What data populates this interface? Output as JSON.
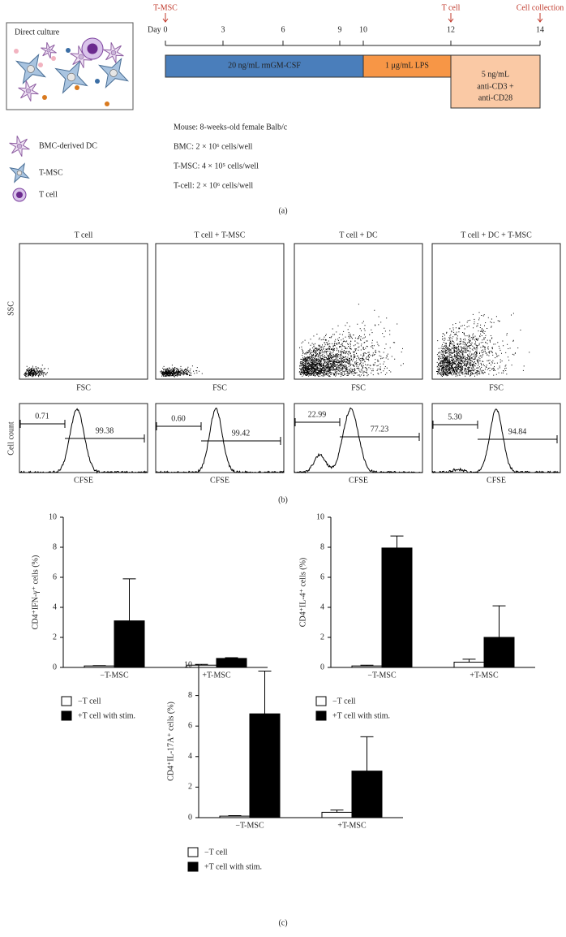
{
  "panel_a": {
    "box_title": "Direct culture",
    "timeline": {
      "day_label": "Day",
      "days": [
        0,
        3,
        6,
        9,
        10,
        12,
        14
      ],
      "events": [
        "T-MSC",
        "T cell",
        "Cell collection"
      ],
      "treatments": [
        "20 ng/mL rmGM-CSF",
        "1 μg/mL LPS",
        "5 ng/mL",
        "anti-CD3 +",
        "anti-CD28"
      ]
    },
    "conditions": [
      "Mouse: 8-weeks-old female Balb/c",
      "BMC: 2 × 10⁶ cells/well",
      "T-MSC: 4 × 10⁵ cells/well",
      "T-cell: 2 × 10⁶ cells/well"
    ],
    "legend": [
      "BMC-derived DC",
      "T-MSC",
      "T cell"
    ],
    "label": "(a)"
  },
  "panel_b": {
    "conditions": [
      "T cell",
      "T cell + T-MSC",
      "T cell + DC",
      "T cell + DC + T-MSC"
    ],
    "scatter_x": "FSC",
    "scatter_y": "SSC",
    "hist_x": "CFSE",
    "hist_y": "Cell count",
    "gates": [
      [
        "0.71",
        "99.38"
      ],
      [
        "0.60",
        "99.42"
      ],
      [
        "22.99",
        "77.23"
      ],
      [
        "5.30",
        "94.84"
      ]
    ],
    "label": "(b)"
  },
  "chart_data": [
    {
      "type": "bar",
      "y_label": "CD4⁺IFN-γ⁺ cells (%)",
      "categories": [
        "−T-MSC",
        "+T-MSC"
      ],
      "series": [
        {
          "name": "−T cell",
          "color": "#ffffff",
          "values": [
            0.1,
            0.15
          ],
          "errors": [
            0.02,
            0.05
          ]
        },
        {
          "name": "+T cell with stim.",
          "color": "#000000",
          "values": [
            3.1,
            0.6
          ],
          "errors": [
            2.8,
            0.05
          ]
        }
      ],
      "ylim": [
        0,
        10
      ],
      "yticks": [
        0,
        2,
        4,
        6,
        8,
        10
      ]
    },
    {
      "type": "bar",
      "y_label": "CD4⁺IL-4⁺ cells (%)",
      "categories": [
        "−T-MSC",
        "+T-MSC"
      ],
      "series": [
        {
          "name": "−T cell",
          "color": "#ffffff",
          "values": [
            0.1,
            0.35
          ],
          "errors": [
            0.05,
            0.2
          ]
        },
        {
          "name": "+T cell with stim.",
          "color": "#000000",
          "values": [
            7.95,
            2.0
          ],
          "errors": [
            0.8,
            2.1
          ]
        }
      ],
      "ylim": [
        0,
        10
      ],
      "yticks": [
        0,
        2,
        4,
        6,
        8,
        10
      ]
    },
    {
      "type": "bar",
      "y_label": "CD4⁺IL-17A⁺ cells (%)",
      "categories": [
        "−T-MSC",
        "+T-MSC"
      ],
      "series": [
        {
          "name": "−T cell",
          "color": "#ffffff",
          "values": [
            0.1,
            0.35
          ],
          "errors": [
            0.03,
            0.15
          ]
        },
        {
          "name": "+T cell with stim.",
          "color": "#000000",
          "values": [
            6.8,
            3.05
          ],
          "errors": [
            2.8,
            2.25
          ]
        }
      ],
      "ylim": [
        0,
        10
      ],
      "yticks": [
        0,
        2,
        4,
        6,
        8,
        10
      ]
    }
  ],
  "panel_c_label": "(c)"
}
